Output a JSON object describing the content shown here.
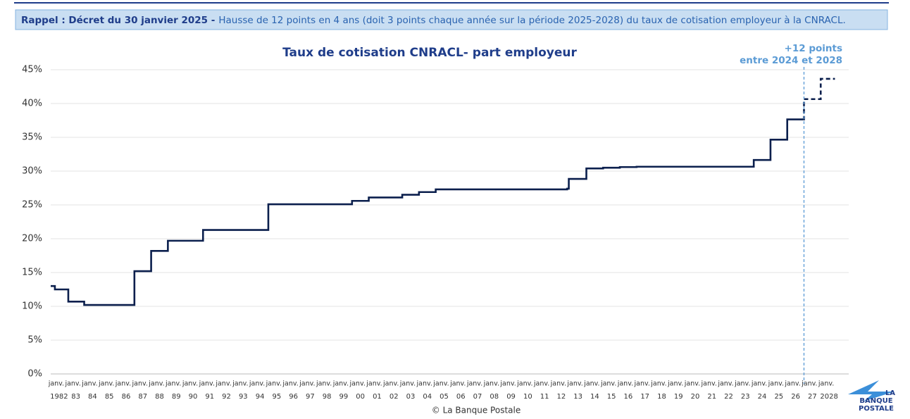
{
  "banner": {
    "bold": "Rappel : Décret du 30 janvier 2025 -",
    "text": "Hausse de 12 points en 4 ans (doit 3 points chaque année sur la période 2025-2028) du taux de cotisation employeur à la CNRACL."
  },
  "chart_data": {
    "type": "line",
    "title": "Taux de cotisation CNRACL- part employeur",
    "series": [
      {
        "color": "#0b1f4d",
        "style": "solid",
        "x": [
          1982.0,
          1982.25,
          1983.05,
          1984.0,
          1987.0,
          1988.0,
          1989.0,
          1991.1,
          1995.0,
          2000.0,
          2001.0,
          2003.0,
          2004.0,
          2005.0,
          2012.85,
          2012.95,
          2014.0,
          2015.0,
          2016.0,
          2017.0,
          2024.0,
          2025.0,
          2026.0,
          2026.95
        ],
        "values": [
          13.0,
          12.5,
          10.7,
          10.2,
          15.2,
          18.2,
          19.7,
          21.3,
          25.1,
          25.6,
          26.1,
          26.5,
          26.9,
          27.3,
          27.4,
          28.85,
          30.4,
          30.5,
          30.6,
          30.65,
          31.65,
          34.65,
          37.65,
          37.65
        ]
      },
      {
        "color": "#0b1f4d",
        "style": "dashed",
        "x": [
          2026.95,
          2027.0,
          2028.0,
          2028.85
        ],
        "values": [
          37.65,
          40.65,
          43.65,
          43.65
        ]
      }
    ],
    "annotation": {
      "x": 2027.0,
      "lines": [
        "+12 points",
        "entre 2024 et 2028"
      ],
      "color": "#5b9bd5"
    },
    "xlim": [
      1982,
      2029
    ],
    "xtick_prefix": "janv.",
    "xticks": [
      {
        "value": 1982.5,
        "label": "1982"
      },
      {
        "value": 1983.5,
        "label": "83"
      },
      {
        "value": 1984.5,
        "label": "84"
      },
      {
        "value": 1985.5,
        "label": "85"
      },
      {
        "value": 1986.5,
        "label": "86"
      },
      {
        "value": 1987.5,
        "label": "87"
      },
      {
        "value": 1988.5,
        "label": "88"
      },
      {
        "value": 1989.5,
        "label": "89"
      },
      {
        "value": 1990.5,
        "label": "90"
      },
      {
        "value": 1991.5,
        "label": "91"
      },
      {
        "value": 1992.5,
        "label": "92"
      },
      {
        "value": 1993.5,
        "label": "93"
      },
      {
        "value": 1994.5,
        "label": "94"
      },
      {
        "value": 1995.5,
        "label": "95"
      },
      {
        "value": 1996.5,
        "label": "96"
      },
      {
        "value": 1997.5,
        "label": "97"
      },
      {
        "value": 1998.5,
        "label": "98"
      },
      {
        "value": 1999.5,
        "label": "99"
      },
      {
        "value": 2000.5,
        "label": "00"
      },
      {
        "value": 2001.5,
        "label": "01"
      },
      {
        "value": 2002.5,
        "label": "02"
      },
      {
        "value": 2003.5,
        "label": "03"
      },
      {
        "value": 2004.5,
        "label": "04"
      },
      {
        "value": 2005.5,
        "label": "05"
      },
      {
        "value": 2006.5,
        "label": "06"
      },
      {
        "value": 2007.5,
        "label": "07"
      },
      {
        "value": 2008.5,
        "label": "08"
      },
      {
        "value": 2009.5,
        "label": "09"
      },
      {
        "value": 2010.5,
        "label": "10"
      },
      {
        "value": 2011.5,
        "label": "11"
      },
      {
        "value": 2012.5,
        "label": "12"
      },
      {
        "value": 2013.5,
        "label": "13"
      },
      {
        "value": 2014.5,
        "label": "14"
      },
      {
        "value": 2015.5,
        "label": "15"
      },
      {
        "value": 2016.5,
        "label": "16"
      },
      {
        "value": 2017.5,
        "label": "17"
      },
      {
        "value": 2018.5,
        "label": "18"
      },
      {
        "value": 2019.5,
        "label": "19"
      },
      {
        "value": 2020.5,
        "label": "20"
      },
      {
        "value": 2021.5,
        "label": "21"
      },
      {
        "value": 2022.5,
        "label": "22"
      },
      {
        "value": 2023.5,
        "label": "23"
      },
      {
        "value": 2024.5,
        "label": "24"
      },
      {
        "value": 2025.5,
        "label": "25"
      },
      {
        "value": 2026.5,
        "label": "26"
      },
      {
        "value": 2027.5,
        "label": "27"
      },
      {
        "value": 2028.5,
        "label": "2028"
      }
    ],
    "ylim": [
      0,
      45
    ],
    "yticks": [
      {
        "value": 0,
        "label": "0%"
      },
      {
        "value": 5,
        "label": "5%"
      },
      {
        "value": 10,
        "label": "10%"
      },
      {
        "value": 15,
        "label": "15%"
      },
      {
        "value": 20,
        "label": "20%"
      },
      {
        "value": 25,
        "label": "25%"
      },
      {
        "value": 30,
        "label": "30%"
      },
      {
        "value": 35,
        "label": "35%"
      },
      {
        "value": 40,
        "label": "40%"
      },
      {
        "value": 45,
        "label": "45%"
      }
    ],
    "grid": true,
    "source": "© La Banque Postale"
  },
  "logo": {
    "lines": [
      "LA",
      "BANQUE",
      "POSTALE"
    ]
  }
}
